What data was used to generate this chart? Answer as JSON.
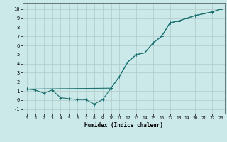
{
  "xlabel": "Humidex (Indice chaleur)",
  "background_color": "#cce9e9",
  "grid_color": "#b0c8c8",
  "line_color": "#1a7070",
  "xlim": [
    -0.5,
    23.5
  ],
  "ylim": [
    -1.5,
    10.7
  ],
  "xticks": [
    0,
    1,
    2,
    3,
    4,
    5,
    6,
    7,
    8,
    9,
    10,
    11,
    12,
    13,
    14,
    15,
    16,
    17,
    18,
    19,
    20,
    21,
    22,
    23
  ],
  "yticks": [
    -1,
    0,
    1,
    2,
    3,
    4,
    5,
    6,
    7,
    8,
    9,
    10
  ],
  "curve1_x": [
    0,
    1,
    2,
    3,
    4,
    5,
    6,
    7,
    8,
    9,
    10,
    11,
    12,
    13,
    14,
    15,
    16,
    17,
    18,
    19,
    20,
    21,
    22,
    23
  ],
  "curve1_y": [
    1.2,
    1.1,
    0.75,
    1.1,
    0.25,
    0.15,
    0.05,
    0.05,
    -0.45,
    0.05,
    1.3,
    2.6,
    4.2,
    5.0,
    5.2,
    6.3,
    7.0,
    8.5,
    8.7,
    9.0,
    9.3,
    9.5,
    9.7,
    10.0
  ],
  "curve2_x": [
    0,
    10,
    11,
    12,
    13,
    14,
    15,
    16,
    17,
    18,
    19,
    20,
    21,
    22,
    23
  ],
  "curve2_y": [
    1.2,
    1.3,
    2.6,
    4.2,
    5.0,
    5.2,
    6.3,
    7.0,
    8.5,
    8.7,
    9.0,
    9.3,
    9.5,
    9.7,
    10.0
  ]
}
